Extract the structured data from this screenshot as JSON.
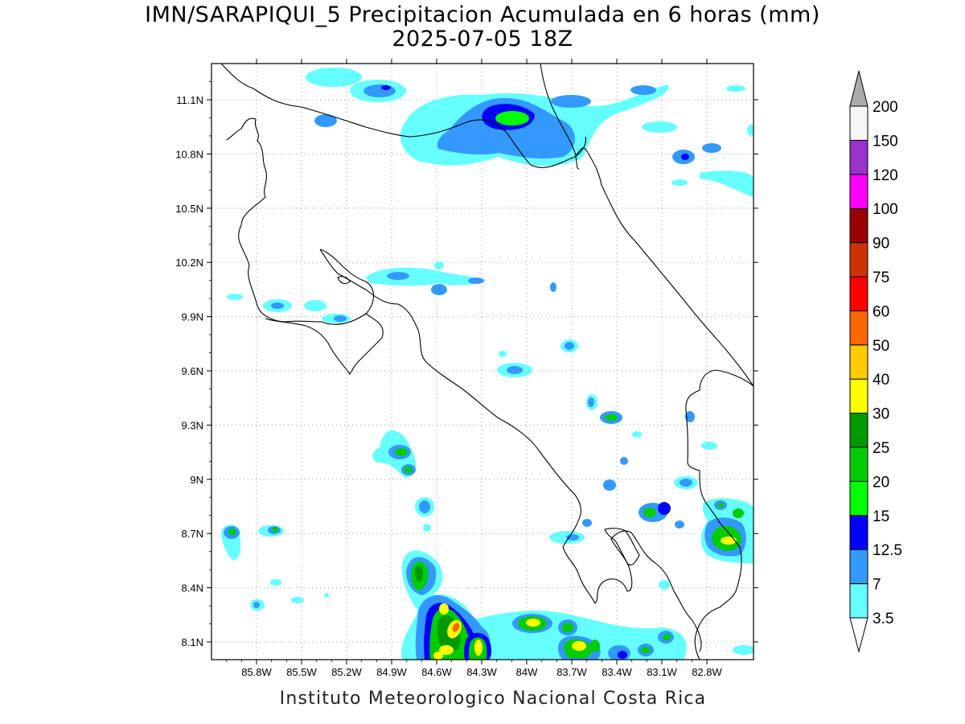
{
  "title_line1": "IMN/SARAPIQUI_5 Precipitacion Acumulada en 6 horas (mm)",
  "title_line2": "2025-07-05 18Z",
  "footer": "Instituto Meteorologico Nacional Costa Rica",
  "map": {
    "lon_range": [
      -86.0,
      -83.0
    ],
    "lat_range": [
      8.0,
      11.2
    ],
    "lat_ticks": [
      {
        "value": 11.1,
        "label": "11.1N"
      },
      {
        "value": 10.8,
        "label": "10.8N"
      },
      {
        "value": 10.5,
        "label": "10.5N"
      },
      {
        "value": 10.2,
        "label": "10.2N"
      },
      {
        "value": 9.9,
        "label": "9.9N"
      },
      {
        "value": 9.6,
        "label": "9.6N"
      },
      {
        "value": 9.3,
        "label": "9.3N"
      },
      {
        "value": 9.0,
        "label": "9N"
      },
      {
        "value": 8.7,
        "label": "8.7N"
      },
      {
        "value": 8.4,
        "label": "8.4N"
      },
      {
        "value": 8.1,
        "label": "8.1N"
      }
    ],
    "lon_ticks": [
      {
        "value": -85.8,
        "label": "85.8W"
      },
      {
        "value": -85.5,
        "label": "85.5W"
      },
      {
        "value": -85.2,
        "label": "85.2W"
      },
      {
        "value": -84.9,
        "label": "84.9W"
      },
      {
        "value": -84.6,
        "label": "84.6W"
      },
      {
        "value": -84.3,
        "label": "84.3W"
      },
      {
        "value": -84.0,
        "label": "84W"
      },
      {
        "value": -83.7,
        "label": "83.7W"
      },
      {
        "value": -83.4,
        "label": "83.4W"
      },
      {
        "value": -83.1,
        "label": "83.1W"
      },
      {
        "value": -82.8,
        "label": "82.8W"
      }
    ],
    "grid": true
  },
  "colorbar": {
    "levels": [
      {
        "label": "3.5",
        "color": "#66ffff"
      },
      {
        "label": "7",
        "color": "#3399ff"
      },
      {
        "label": "12.5",
        "color": "#0000ff"
      },
      {
        "label": "15",
        "color": "#00ff00"
      },
      {
        "label": "20",
        "color": "#00cc00"
      },
      {
        "label": "25",
        "color": "#009900"
      },
      {
        "label": "30",
        "color": "#ffff00"
      },
      {
        "label": "40",
        "color": "#ffcc00"
      },
      {
        "label": "50",
        "color": "#ff6600"
      },
      {
        "label": "60",
        "color": "#ff0000"
      },
      {
        "label": "75",
        "color": "#cc3300"
      },
      {
        "label": "90",
        "color": "#990000"
      },
      {
        "label": "100",
        "color": "#ff00ff"
      },
      {
        "label": "120",
        "color": "#9933cc"
      },
      {
        "label": "150",
        "color": "#f5f5f5"
      },
      {
        "label": "200",
        "color": "#aaaaaa"
      }
    ],
    "below_color": "#ffffff",
    "above_color": "#aaaaaa"
  }
}
